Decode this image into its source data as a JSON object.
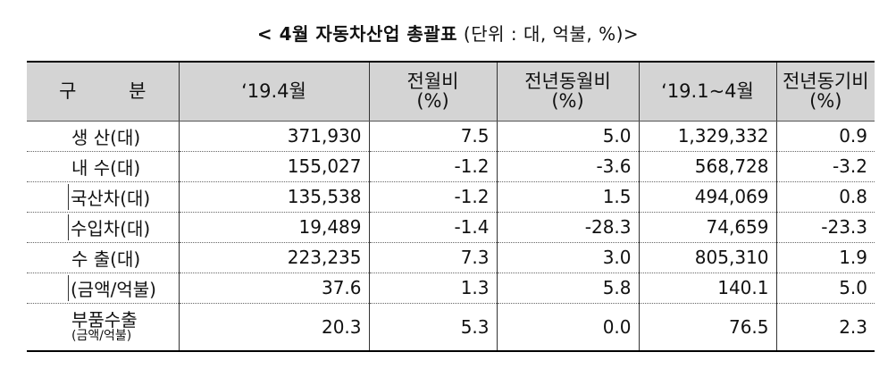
{
  "title": {
    "main": "< 4월 자동차산업 총괄표",
    "unit": " (단위 : 대, 억불, %)>"
  },
  "table": {
    "headers": [
      {
        "line1": "구 분",
        "line2": ""
      },
      {
        "line1": "‘19.4월",
        "line2": ""
      },
      {
        "line1": "전월비",
        "line2": "(%)"
      },
      {
        "line1": "전년동월비",
        "line2": "(%)"
      },
      {
        "line1": "‘19.1~4월",
        "line2": ""
      },
      {
        "line1": "전년동기비",
        "line2": "(%)"
      }
    ],
    "rows": [
      {
        "label": "생   산(대)",
        "sub": false,
        "values": [
          "371,930",
          "7.5",
          "5.0",
          "1,329,332",
          "0.9"
        ]
      },
      {
        "label": "내   수(대)",
        "sub": false,
        "values": [
          "155,027",
          "-1.2",
          "-3.6",
          "568,728",
          "-3.2"
        ]
      },
      {
        "label": "국산차(대)",
        "sub": true,
        "values": [
          "135,538",
          "-1.2",
          "1.5",
          "494,069",
          "0.8"
        ]
      },
      {
        "label": "수입차(대)",
        "sub": true,
        "values": [
          "19,489",
          "-1.4",
          "-28.3",
          "74,659",
          "-23.3"
        ]
      },
      {
        "label": "수   출(대)",
        "sub": false,
        "values": [
          "223,235",
          "7.3",
          "3.0",
          "805,310",
          "1.9"
        ]
      },
      {
        "label": "(금액/억불)",
        "sub": true,
        "values": [
          "37.6",
          "1.3",
          "5.8",
          "140.1",
          "5.0"
        ]
      }
    ],
    "last_row": {
      "label_main": "부품수출",
      "label_small": "(금액/억불)",
      "values": [
        "20.3",
        "5.3",
        "0.0",
        "76.5",
        "2.3"
      ]
    }
  }
}
